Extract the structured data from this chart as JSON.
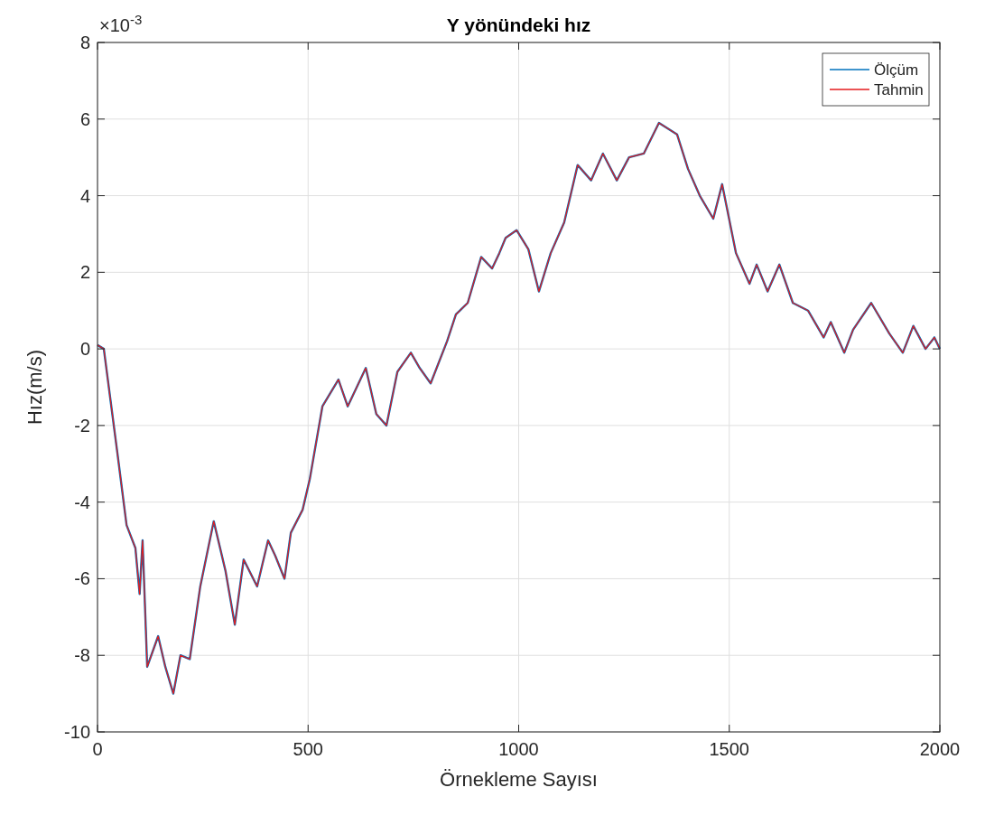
{
  "chart_data": {
    "type": "line",
    "title": "Y yönündeki hız",
    "xlabel": "Örnekleme Sayısı",
    "ylabel": "Hız(m/s)",
    "annotations": [
      "×10$^{-3}$"
    ],
    "xlim": [
      0,
      2000
    ],
    "xticks": [
      0,
      500,
      1000,
      1500,
      2000
    ],
    "ylim": [
      -10,
      8
    ],
    "yticks": [
      -10,
      -8,
      -6,
      -4,
      -2,
      0,
      2,
      4,
      6,
      8
    ],
    "grid": true,
    "legend": "top right",
    "line_style": "solid",
    "marker": "none",
    "x": [
      0,
      15,
      47,
      69,
      90,
      100,
      107,
      118,
      144,
      161,
      180,
      197,
      219,
      244,
      276,
      304,
      326,
      347,
      379,
      405,
      422,
      444,
      459,
      487,
      504,
      534,
      572,
      594,
      637,
      662,
      686,
      712,
      744,
      765,
      791,
      830,
      851,
      879,
      911,
      937,
      954,
      969,
      995,
      1023,
      1048,
      1076,
      1108,
      1140,
      1172,
      1200,
      1233,
      1262,
      1297,
      1333,
      1376,
      1402,
      1430,
      1462,
      1483,
      1516,
      1548,
      1565,
      1591,
      1619,
      1651,
      1687,
      1724,
      1741,
      1773,
      1794,
      1837,
      1880,
      1912,
      1937,
      1966,
      1987,
      2000
    ],
    "series": [
      {
        "name": "Ölçüm",
        "color": "#0072bd",
        "values": [
          0.1,
          0,
          -2.7,
          -4.6,
          -5.2,
          -6.4,
          -5.0,
          -8.3,
          -7.5,
          -8.3,
          -9.0,
          -8.0,
          -8.1,
          -6.2,
          -4.5,
          -5.8,
          -7.2,
          -5.5,
          -6.2,
          -5.0,
          -5.4,
          -6.0,
          -4.8,
          -4.2,
          -3.4,
          -1.5,
          -0.8,
          -1.5,
          -0.5,
          -1.7,
          -2.0,
          -0.6,
          -0.1,
          -0.5,
          -0.9,
          0.2,
          0.9,
          1.2,
          2.4,
          2.1,
          2.5,
          2.9,
          3.1,
          2.6,
          1.5,
          2.5,
          3.3,
          4.8,
          4.4,
          5.1,
          4.4,
          5.0,
          5.1,
          5.9,
          5.6,
          4.7,
          4.0,
          3.4,
          4.3,
          2.5,
          1.7,
          2.2,
          1.5,
          2.2,
          1.2,
          1.0,
          0.3,
          0.7,
          -0.1,
          0.5,
          1.2,
          0.4,
          -0.1,
          0.6,
          0,
          0.3,
          0
        ]
      },
      {
        "name": "Tahmin",
        "color": "#e41a1c",
        "values": [
          0.1,
          0,
          -2.7,
          -4.6,
          -5.2,
          -6.4,
          -5.0,
          -8.3,
          -7.5,
          -8.3,
          -9.0,
          -8.0,
          -8.1,
          -6.2,
          -4.5,
          -5.8,
          -7.2,
          -5.5,
          -6.2,
          -5.0,
          -5.4,
          -6.0,
          -4.8,
          -4.2,
          -3.4,
          -1.5,
          -0.8,
          -1.5,
          -0.5,
          -1.7,
          -2.0,
          -0.6,
          -0.1,
          -0.5,
          -0.9,
          0.2,
          0.9,
          1.2,
          2.4,
          2.1,
          2.5,
          2.9,
          3.1,
          2.6,
          1.5,
          2.5,
          3.3,
          4.8,
          4.4,
          5.1,
          4.4,
          5.0,
          5.1,
          5.9,
          5.6,
          4.7,
          4.0,
          3.4,
          4.3,
          2.5,
          1.7,
          2.2,
          1.5,
          2.2,
          1.2,
          1.0,
          0.3,
          0.7,
          -0.1,
          0.5,
          1.2,
          0.4,
          -0.1,
          0.6,
          0,
          0.3,
          0
        ]
      }
    ]
  }
}
